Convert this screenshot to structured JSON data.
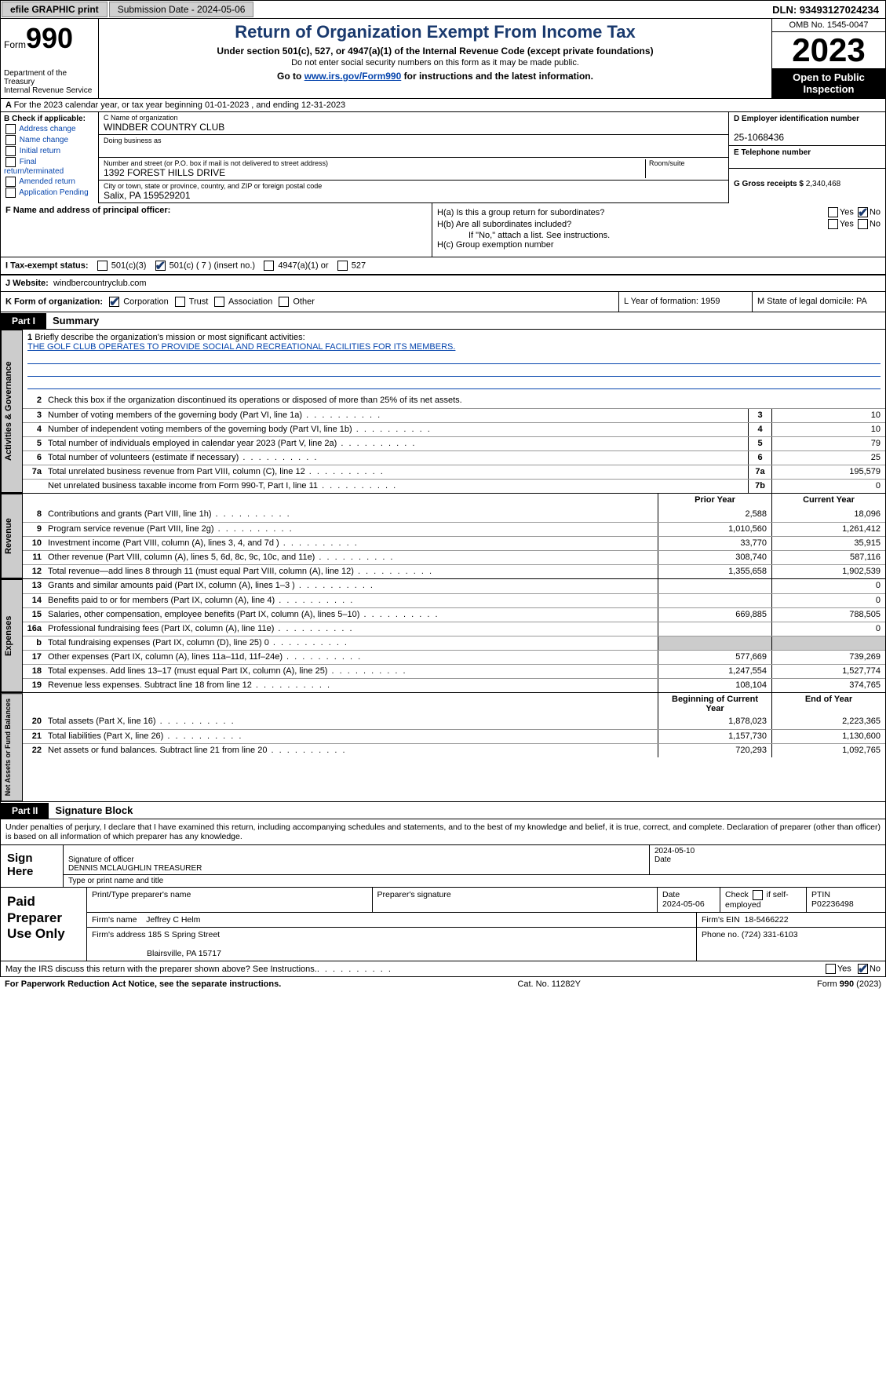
{
  "topbar": {
    "efile": "efile GRAPHIC print",
    "submission": "Submission Date - 2024-05-06",
    "dln": "DLN: 93493127024234"
  },
  "header": {
    "form_word": "Form",
    "form_num": "990",
    "title": "Return of Organization Exempt From Income Tax",
    "subtitle": "Under section 501(c), 527, or 4947(a)(1) of the Internal Revenue Code (except private foundations)",
    "note": "Do not enter social security numbers on this form as it may be made public.",
    "goto_pre": "Go to ",
    "goto_link": "www.irs.gov/Form990",
    "goto_post": " for instructions and the latest information.",
    "dept": "Department of the Treasury\nInternal Revenue Service",
    "omb": "OMB No. 1545-0047",
    "year": "2023",
    "open": "Open to Public Inspection"
  },
  "rowA": "For the 2023 calendar year, or tax year beginning 01-01-2023    , and ending 12-31-2023",
  "boxB": {
    "lbl": "B Check if applicable:",
    "items": [
      "Address change",
      "Name change",
      "Initial return",
      "Final return/terminated",
      "Amended return",
      "Application Pending"
    ]
  },
  "boxC": {
    "name_lbl": "C Name of organization",
    "name": "WINDBER COUNTRY CLUB",
    "dba_lbl": "Doing business as",
    "addr_lbl": "Number and street (or P.O. box if mail is not delivered to street address)",
    "room_lbl": "Room/suite",
    "addr": "1392 FOREST HILLS DRIVE",
    "city_lbl": "City or town, state or province, country, and ZIP or foreign postal code",
    "city": "Salix, PA  159529201"
  },
  "boxD": {
    "lbl": "D Employer identification number",
    "val": "25-1068436"
  },
  "boxE": {
    "lbl": "E Telephone number"
  },
  "boxG": {
    "lbl": "G Gross receipts $",
    "val": "2,340,468"
  },
  "boxF": {
    "lbl": "F  Name and address of principal officer:"
  },
  "boxH": {
    "a": "H(a)  Is this a group return for subordinates?",
    "b": "H(b)  Are all subordinates included?",
    "note": "If \"No,\" attach a list. See instructions.",
    "c": "H(c)  Group exemption number"
  },
  "yn": {
    "yes": "Yes",
    "no": "No"
  },
  "boxI": {
    "lbl": "I    Tax-exempt status:",
    "opt1": "501(c)(3)",
    "opt2": "501(c) ( 7 ) (insert no.)",
    "opt3": "4947(a)(1) or",
    "opt4": "527"
  },
  "boxJ": {
    "lbl": "J    Website:",
    "val": "windbercountryclub.com"
  },
  "boxK": {
    "lbl": "K Form of organization:",
    "opts": [
      "Corporation",
      "Trust",
      "Association",
      "Other"
    ]
  },
  "boxL": "L Year of formation: 1959",
  "boxM": "M State of legal domicile: PA",
  "part1": {
    "tag": "Part I",
    "title": "Summary"
  },
  "vtabs": {
    "gov": "Activities & Governance",
    "rev": "Revenue",
    "exp": "Expenses",
    "net": "Net Assets or Fund Balances"
  },
  "mission": {
    "lbl": "Briefly describe the organization's mission or most significant activities:",
    "txt": "THE GOLF CLUB OPERATES TO PROVIDE SOCIAL AND RECREATIONAL FACILITIES FOR ITS MEMBERS."
  },
  "gov_lines": [
    {
      "n": "2",
      "t": "Check this box         if the organization discontinued its operations or disposed of more than 25% of its net assets."
    },
    {
      "n": "3",
      "t": "Number of voting members of the governing body (Part VI, line 1a)",
      "box": "3",
      "v": "10"
    },
    {
      "n": "4",
      "t": "Number of independent voting members of the governing body (Part VI, line 1b)",
      "box": "4",
      "v": "10"
    },
    {
      "n": "5",
      "t": "Total number of individuals employed in calendar year 2023 (Part V, line 2a)",
      "box": "5",
      "v": "79"
    },
    {
      "n": "6",
      "t": "Total number of volunteers (estimate if necessary)",
      "box": "6",
      "v": "25"
    },
    {
      "n": "7a",
      "t": "Total unrelated business revenue from Part VIII, column (C), line 12",
      "box": "7a",
      "v": "195,579"
    },
    {
      "n": "",
      "t": "Net unrelated business taxable income from Form 990-T, Part I, line 11",
      "box": "7b",
      "v": "0"
    }
  ],
  "col_hdrs": {
    "prior": "Prior Year",
    "current": "Current Year",
    "beg": "Beginning of Current Year",
    "end": "End of Year"
  },
  "rev_lines": [
    {
      "n": "8",
      "t": "Contributions and grants (Part VIII, line 1h)",
      "p": "2,588",
      "c": "18,096"
    },
    {
      "n": "9",
      "t": "Program service revenue (Part VIII, line 2g)",
      "p": "1,010,560",
      "c": "1,261,412"
    },
    {
      "n": "10",
      "t": "Investment income (Part VIII, column (A), lines 3, 4, and 7d )",
      "p": "33,770",
      "c": "35,915"
    },
    {
      "n": "11",
      "t": "Other revenue (Part VIII, column (A), lines 5, 6d, 8c, 9c, 10c, and 11e)",
      "p": "308,740",
      "c": "587,116"
    },
    {
      "n": "12",
      "t": "Total revenue—add lines 8 through 11 (must equal Part VIII, column (A), line 12)",
      "p": "1,355,658",
      "c": "1,902,539"
    }
  ],
  "exp_lines": [
    {
      "n": "13",
      "t": "Grants and similar amounts paid (Part IX, column (A), lines 1–3 )",
      "p": "",
      "c": "0"
    },
    {
      "n": "14",
      "t": "Benefits paid to or for members (Part IX, column (A), line 4)",
      "p": "",
      "c": "0"
    },
    {
      "n": "15",
      "t": "Salaries, other compensation, employee benefits (Part IX, column (A), lines 5–10)",
      "p": "669,885",
      "c": "788,505"
    },
    {
      "n": "16a",
      "t": "Professional fundraising fees (Part IX, column (A), line 11e)",
      "p": "",
      "c": "0"
    },
    {
      "n": "b",
      "t": "Total fundraising expenses (Part IX, column (D), line 25) 0",
      "p": "grey",
      "c": "grey"
    },
    {
      "n": "17",
      "t": "Other expenses (Part IX, column (A), lines 11a–11d, 11f–24e)",
      "p": "577,669",
      "c": "739,269"
    },
    {
      "n": "18",
      "t": "Total expenses. Add lines 13–17 (must equal Part IX, column (A), line 25)",
      "p": "1,247,554",
      "c": "1,527,774"
    },
    {
      "n": "19",
      "t": "Revenue less expenses. Subtract line 18 from line 12",
      "p": "108,104",
      "c": "374,765"
    }
  ],
  "net_lines": [
    {
      "n": "20",
      "t": "Total assets (Part X, line 16)",
      "p": "1,878,023",
      "c": "2,223,365"
    },
    {
      "n": "21",
      "t": "Total liabilities (Part X, line 26)",
      "p": "1,157,730",
      "c": "1,130,600"
    },
    {
      "n": "22",
      "t": "Net assets or fund balances. Subtract line 21 from line 20",
      "p": "720,293",
      "c": "1,092,765"
    }
  ],
  "part2": {
    "tag": "Part II",
    "title": "Signature Block"
  },
  "sig_intro": "Under penalties of perjury, I declare that I have examined this return, including accompanying schedules and statements, and to the best of my knowledge and belief, it is true, correct, and complete. Declaration of preparer (other than officer) is based on all information of which preparer has any knowledge.",
  "sign": {
    "here": "Sign Here",
    "sig_lbl": "Signature of officer",
    "name": "DENNIS MCLAUGHLIN  TREASURER",
    "name_lbl": "Type or print name and title",
    "date_lbl": "Date",
    "date": "2024-05-10"
  },
  "prep": {
    "left": "Paid Preparer Use Only",
    "h1": "Print/Type preparer's name",
    "h2": "Preparer's signature",
    "h3": "Date",
    "date": "2024-05-06",
    "h4": "Check          if self-employed",
    "h5": "PTIN",
    "ptin": "P02236498",
    "firm_lbl": "Firm's name",
    "firm": "Jeffrey C Helm",
    "ein_lbl": "Firm's EIN",
    "ein": "18-5466222",
    "addr_lbl": "Firm's address",
    "addr1": "185 S Spring Street",
    "addr2": "Blairsville, PA  15717",
    "phone_lbl": "Phone no.",
    "phone": "(724) 331-6103"
  },
  "discuss": "May the IRS discuss this return with the preparer shown above? See Instructions.",
  "footer": {
    "pra": "For Paperwork Reduction Act Notice, see the separate instructions.",
    "cat": "Cat. No. 11282Y",
    "form": "Form 990 (2023)"
  }
}
